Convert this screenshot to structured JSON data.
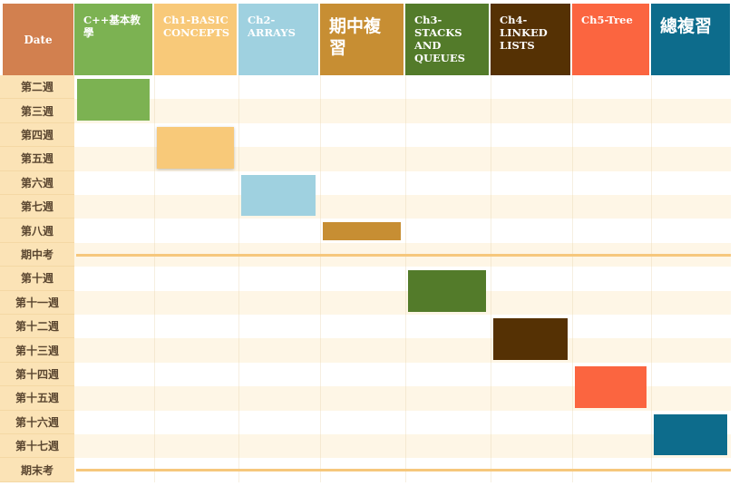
{
  "chart_data": {
    "type": "table",
    "date_header": "Date",
    "columns": [
      {
        "label": "C++基本教學",
        "color": "#7cb252",
        "style": "small"
      },
      {
        "label": "Ch1-BASIC\nCONCEPTS",
        "color": "#f8c979",
        "style": "small"
      },
      {
        "label": "Ch2-\nARRAYS",
        "color": "#9fd1e0",
        "style": "small"
      },
      {
        "label": "期中複習",
        "color": "#c78e33",
        "style": "big"
      },
      {
        "label": "Ch3-\nSTACKS\nAND\nQUEUES",
        "color": "#537b2a",
        "style": "small"
      },
      {
        "label": "Ch4-\nLINKED\nLISTS",
        "color": "#553104",
        "style": "small"
      },
      {
        "label": "Ch5-Tree",
        "color": "#fb6540",
        "style": "small"
      },
      {
        "label": "總複習",
        "color": "#0d6c8c",
        "style": "big"
      }
    ],
    "rows": [
      "第二週",
      "第三週",
      "第四週",
      "第五週",
      "第六週",
      "第七週",
      "第八週",
      "期中考",
      "第十週",
      "第十一週",
      "第十二週",
      "第十三週",
      "第十四週",
      "第十五週",
      "第十六週",
      "第十七週",
      "期末考"
    ],
    "exam_rows": [
      "期中考",
      "期末考"
    ],
    "tasks": [
      {
        "column": 0,
        "start_row": 0,
        "end_row": 1
      },
      {
        "column": 1,
        "start_row": 2,
        "end_row": 3
      },
      {
        "column": 2,
        "start_row": 4,
        "end_row": 5
      },
      {
        "column": 3,
        "start_row": 6,
        "end_row": 6
      },
      {
        "column": 4,
        "start_row": 8,
        "end_row": 9
      },
      {
        "column": 5,
        "start_row": 10,
        "end_row": 11
      },
      {
        "column": 6,
        "start_row": 12,
        "end_row": 13
      },
      {
        "column": 7,
        "start_row": 14,
        "end_row": 15
      }
    ],
    "colors": {
      "date_header": "#d2804f",
      "row_label_bg": "#fbe3b6",
      "stripe_light": "#ffffff",
      "stripe_tint": "#fef6e6",
      "exam_line": "#f6c77c"
    }
  }
}
